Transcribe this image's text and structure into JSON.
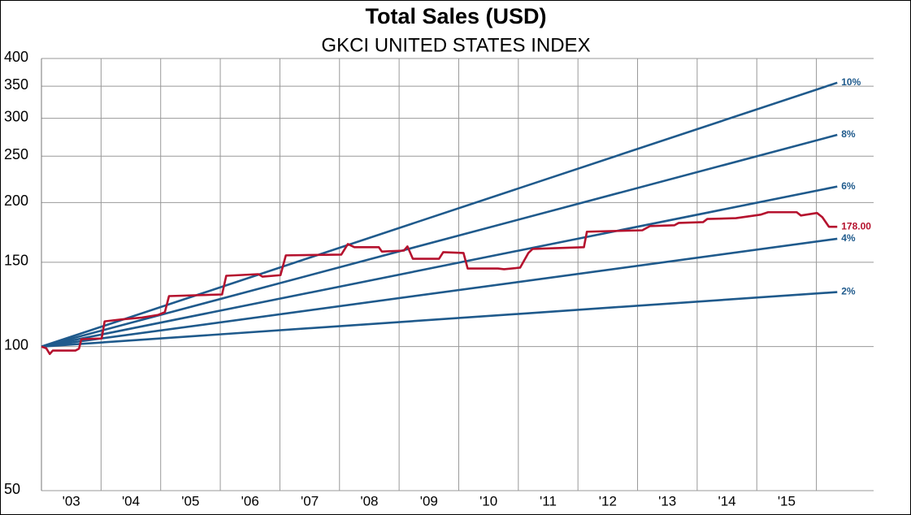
{
  "chart_data": {
    "type": "line",
    "title": "Total Sales (USD)",
    "subtitle": "GKCI UNITED STATES INDEX",
    "log_y": true,
    "grid": true,
    "xlim": [
      2003,
      2016.96
    ],
    "ylim": [
      50,
      400
    ],
    "yticks": [
      50,
      100,
      150,
      200,
      250,
      300,
      350,
      400
    ],
    "xticks": [
      {
        "value": 2003.5,
        "label": "'03"
      },
      {
        "value": 2004.5,
        "label": "'04"
      },
      {
        "value": 2005.5,
        "label": "'05"
      },
      {
        "value": 2006.5,
        "label": "'06"
      },
      {
        "value": 2007.5,
        "label": "'07"
      },
      {
        "value": 2008.5,
        "label": "'08"
      },
      {
        "value": 2009.5,
        "label": "'09"
      },
      {
        "value": 2010.5,
        "label": "'10"
      },
      {
        "value": 2011.5,
        "label": "'11"
      },
      {
        "value": 2012.5,
        "label": "'12"
      },
      {
        "value": 2013.5,
        "label": "'13"
      },
      {
        "value": 2014.5,
        "label": "'14"
      },
      {
        "value": 2015.5,
        "label": "'15"
      }
    ],
    "series": [
      {
        "name": "10%",
        "color": "#1f5a8c",
        "x": [
          2003,
          2016.35
        ],
        "values": [
          100,
          356
        ]
      },
      {
        "name": "8%",
        "color": "#1f5a8c",
        "x": [
          2003,
          2016.35
        ],
        "values": [
          100,
          277
        ]
      },
      {
        "name": "6%",
        "color": "#1f5a8c",
        "x": [
          2003,
          2016.35
        ],
        "values": [
          100,
          216
        ]
      },
      {
        "name": "4%",
        "color": "#1f5a8c",
        "x": [
          2003,
          2016.35
        ],
        "values": [
          100,
          168
        ]
      },
      {
        "name": "2%",
        "color": "#1f5a8c",
        "x": [
          2003,
          2016.35
        ],
        "values": [
          100,
          130
        ]
      },
      {
        "color": "#b5122e",
        "x": [
          2003.0,
          2003.08,
          2003.14,
          2003.19,
          2003.57,
          2003.63,
          2003.67,
          2004.01,
          2004.06,
          2004.35,
          2004.69,
          2004.96,
          2005.07,
          2005.14,
          2006.03,
          2006.1,
          2006.64,
          2006.71,
          2007.01,
          2007.1,
          2008.03,
          2008.14,
          2008.25,
          2008.66,
          2008.71,
          2009.08,
          2009.14,
          2009.23,
          2009.67,
          2009.74,
          2010.08,
          2010.15,
          2010.66,
          2010.76,
          2011.03,
          2011.17,
          2011.24,
          2012.1,
          2012.15,
          2013.08,
          2013.21,
          2013.62,
          2013.69,
          2014.1,
          2014.17,
          2014.65,
          2015.06,
          2015.19,
          2015.67,
          2015.74,
          2016.01,
          2016.1,
          2016.21,
          2016.35
        ],
        "values": [
          100,
          99.2,
          96.5,
          98.1,
          98.1,
          99,
          103.6,
          104,
          112.9,
          114,
          115,
          116.5,
          118,
          127.5,
          128.5,
          140.6,
          141.7,
          140,
          141,
          155.1,
          155.7,
          163.8,
          161.3,
          161.3,
          158,
          158.7,
          161.9,
          152.6,
          152.6,
          157.5,
          156.9,
          145.6,
          145.6,
          145.1,
          146.2,
          157,
          160,
          161.3,
          173.8,
          175,
          178.6,
          179.3,
          181.3,
          182,
          184.8,
          185.5,
          188.6,
          190.9,
          190.9,
          187.9,
          190.2,
          186.4,
          178,
          178
        ],
        "value_labels": [
          null,
          null,
          null,
          null,
          null,
          null,
          null,
          null,
          null,
          null,
          null,
          null,
          null,
          null,
          null,
          null,
          null,
          null,
          null,
          null,
          null,
          null,
          null,
          null,
          null,
          null,
          null,
          null,
          null,
          null,
          null,
          null,
          null,
          null,
          null,
          null,
          null,
          null,
          null,
          null,
          null,
          null,
          null,
          null,
          null,
          null,
          null,
          null,
          null,
          null,
          null,
          null,
          null,
          "178.00"
        ]
      }
    ]
  }
}
